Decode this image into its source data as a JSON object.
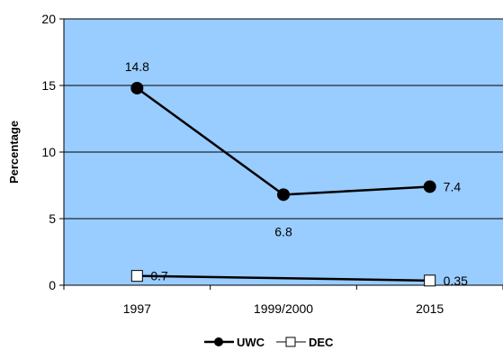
{
  "chart_data": {
    "type": "line",
    "categories": [
      "1997",
      "1999/2000",
      "2015"
    ],
    "ylabel": "Percentage",
    "ylim": [
      0,
      20
    ],
    "yticks": [
      "0",
      "5",
      "10",
      "15",
      "20"
    ],
    "grid": true,
    "legend_position": "bottom",
    "plot_background": "#99CCFF",
    "series": [
      {
        "name": "UWC",
        "values": [
          14.8,
          6.8,
          7.4
        ],
        "labels": [
          "14.8",
          "6.8",
          "7.4"
        ],
        "label_position": [
          "above",
          "below",
          "right"
        ],
        "marker": "filled-circle",
        "color": "#000000"
      },
      {
        "name": "DEC",
        "values": [
          0.7,
          null,
          0.35
        ],
        "labels": [
          "0.7",
          "",
          "0.35"
        ],
        "label_position": [
          "right",
          "right",
          "right"
        ],
        "marker": "open-square",
        "color": "#000000"
      }
    ]
  }
}
